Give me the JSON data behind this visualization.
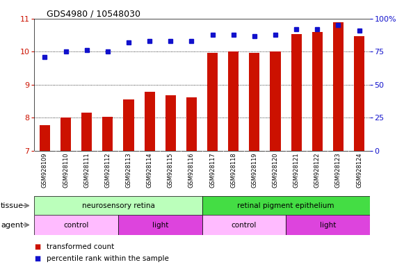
{
  "title": "GDS4980 / 10548030",
  "samples": [
    "GSM928109",
    "GSM928110",
    "GSM928111",
    "GSM928112",
    "GSM928113",
    "GSM928114",
    "GSM928115",
    "GSM928116",
    "GSM928117",
    "GSM928118",
    "GSM928119",
    "GSM928120",
    "GSM928121",
    "GSM928122",
    "GSM928123",
    "GSM928124"
  ],
  "bar_values": [
    7.78,
    8.0,
    8.15,
    8.02,
    8.55,
    8.78,
    8.68,
    8.63,
    9.97,
    10.0,
    9.97,
    10.0,
    10.53,
    10.6,
    10.9,
    10.47
  ],
  "blue_values": [
    71,
    75,
    76,
    75,
    82,
    83,
    83,
    83,
    88,
    88,
    87,
    88,
    92,
    92,
    95,
    91
  ],
  "bar_color": "#cc1100",
  "blue_color": "#1111cc",
  "ylim_left": [
    7,
    11
  ],
  "ylim_right": [
    0,
    100
  ],
  "yticks_left": [
    7,
    8,
    9,
    10,
    11
  ],
  "yticks_right": [
    0,
    25,
    50,
    75,
    100
  ],
  "ytick_labels_right": [
    "0",
    "25",
    "50",
    "75",
    "100%"
  ],
  "tissue_groups": [
    {
      "label": "neurosensory retina",
      "start": 0,
      "end": 8,
      "color": "#bbffbb"
    },
    {
      "label": "retinal pigment epithelium",
      "start": 8,
      "end": 16,
      "color": "#44dd44"
    }
  ],
  "agent_groups": [
    {
      "label": "control",
      "start": 0,
      "end": 4,
      "color": "#ffbbff"
    },
    {
      "label": "light",
      "start": 4,
      "end": 8,
      "color": "#dd44dd"
    },
    {
      "label": "control",
      "start": 8,
      "end": 12,
      "color": "#ffbbff"
    },
    {
      "label": "light",
      "start": 12,
      "end": 16,
      "color": "#dd44dd"
    }
  ],
  "bg_color": "#ffffff",
  "tick_area_bg": "#d0d0d0"
}
